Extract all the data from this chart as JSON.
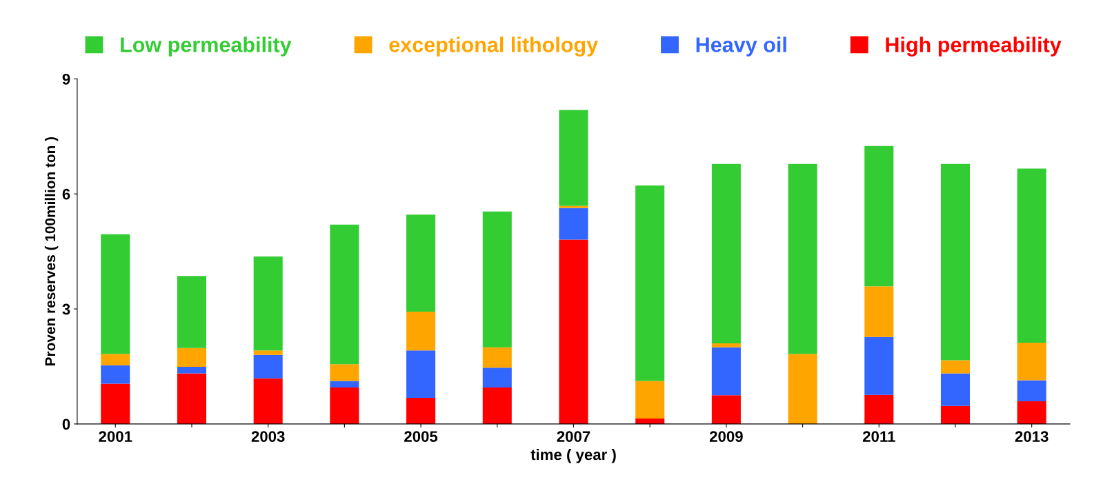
{
  "chart_data": {
    "type": "bar",
    "stacked": true,
    "xlabel": "time ( year )",
    "ylabel": "Proven reserves ( 100million ton )",
    "categories": [
      "2001",
      null,
      "2003",
      null,
      "2005",
      null,
      "2007",
      null,
      "2009",
      null,
      "2011",
      null,
      "2013"
    ],
    "series": [
      {
        "name": "High permeability",
        "color": "#ff0000",
        "values": [
          1.05,
          1.32,
          1.19,
          0.95,
          0.68,
          0.95,
          4.81,
          0.14,
          0.75,
          0,
          0.76,
          0.47,
          0.59
        ]
      },
      {
        "name": "Heavy oil",
        "color": "#3366ff",
        "values": [
          0.48,
          0.17,
          0.61,
          0.17,
          1.24,
          0.52,
          0.82,
          0,
          1.25,
          0,
          1.51,
          0.85,
          0.55
        ]
      },
      {
        "name": "exceptional lithology",
        "color": "#ffa500",
        "values": [
          0.3,
          0.49,
          0.12,
          0.44,
          1.01,
          0.53,
          0.06,
          0.98,
          0.1,
          1.83,
          1.32,
          0.34,
          0.98
        ]
      },
      {
        "name": "Low permeability",
        "color": "#33cc33",
        "values": [
          3.12,
          1.88,
          2.45,
          3.64,
          2.53,
          3.54,
          2.5,
          5.1,
          4.68,
          4.95,
          3.66,
          5.12,
          4.54
        ]
      }
    ],
    "ylim": [
      0,
      9
    ],
    "yticks": [
      0,
      3,
      6,
      9
    ],
    "legend": "top",
    "grid": false
  }
}
